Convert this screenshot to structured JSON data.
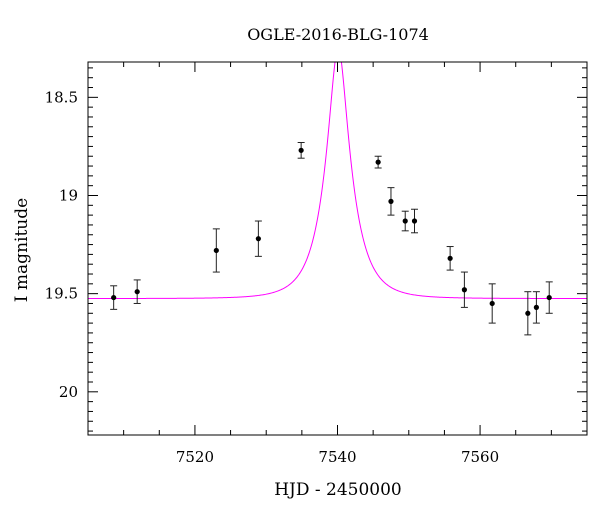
{
  "chart_data": {
    "type": "scatter",
    "title": "OGLE-2016-BLG-1074",
    "xlabel": "HJD - 2450000",
    "ylabel": "I magnitude",
    "xlim": [
      7505,
      7575
    ],
    "ylim": [
      18.32,
      20.22
    ],
    "y_inverted": true,
    "x_ticks": [
      7520,
      7540,
      7560
    ],
    "y_ticks": [
      18.5,
      19,
      19.5,
      20
    ],
    "x_tick_labels": [
      "7520",
      "7540",
      "7560"
    ],
    "y_tick_labels": [
      "18.5",
      "19",
      "19.5",
      "20"
    ],
    "grid": false,
    "colors": {
      "model": "#ff00ff",
      "points": "#000000",
      "axes": "#000000"
    },
    "model": {
      "name": "",
      "baseline_mag": 19.525,
      "peak_mag": 18.25,
      "t0": 7540.1,
      "tE": 3.6
    },
    "series": [
      {
        "points": [
          {
            "x": 7508.6,
            "y": 19.52,
            "err": 0.06
          },
          {
            "x": 7511.9,
            "y": 19.49,
            "err": 0.06
          },
          {
            "x": 7523.0,
            "y": 19.28,
            "err": 0.11
          },
          {
            "x": 7528.9,
            "y": 19.22,
            "err": 0.09
          },
          {
            "x": 7534.9,
            "y": 18.77,
            "err": 0.04
          },
          {
            "x": 7545.7,
            "y": 18.83,
            "err": 0.03
          },
          {
            "x": 7547.5,
            "y": 19.03,
            "err": 0.07
          },
          {
            "x": 7549.5,
            "y": 19.13,
            "err": 0.05
          },
          {
            "x": 7550.8,
            "y": 19.13,
            "err": 0.06
          },
          {
            "x": 7555.8,
            "y": 19.32,
            "err": 0.06
          },
          {
            "x": 7557.8,
            "y": 19.48,
            "err": 0.09
          },
          {
            "x": 7561.7,
            "y": 19.55,
            "err": 0.1
          },
          {
            "x": 7566.7,
            "y": 19.6,
            "err": 0.11
          },
          {
            "x": 7567.9,
            "y": 19.57,
            "err": 0.08
          },
          {
            "x": 7569.7,
            "y": 19.52,
            "err": 0.08
          }
        ]
      }
    ]
  }
}
